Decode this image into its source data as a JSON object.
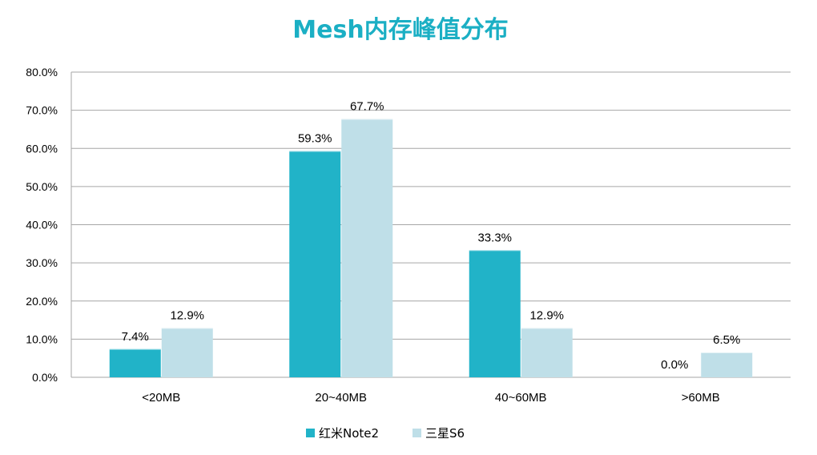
{
  "chart_data": {
    "type": "bar",
    "title": "Mesh内存峰值分布",
    "categories": [
      "<20MB",
      "20~40MB",
      "40~60MB",
      ">60MB"
    ],
    "series": [
      {
        "name": "红米Note2",
        "values": [
          7.4,
          59.3,
          33.3,
          0.0
        ],
        "labels": [
          "7.4%",
          "59.3%",
          "33.3%",
          "0.0%"
        ],
        "color": "#21B3C8"
      },
      {
        "name": "三星S6",
        "values": [
          12.9,
          67.7,
          12.9,
          6.5
        ],
        "labels": [
          "12.9%",
          "67.7%",
          "12.9%",
          "6.5%"
        ],
        "color": "#BFDFE8"
      }
    ],
    "ylim": [
      0,
      80
    ],
    "ytick_labels": [
      "0.0%",
      "10.0%",
      "20.0%",
      "30.0%",
      "40.0%",
      "50.0%",
      "60.0%",
      "70.0%",
      "80.0%"
    ],
    "xlabel": "",
    "ylabel": "",
    "grid": true,
    "legend_position": "bottom",
    "title_color": "#1BAFC4"
  }
}
